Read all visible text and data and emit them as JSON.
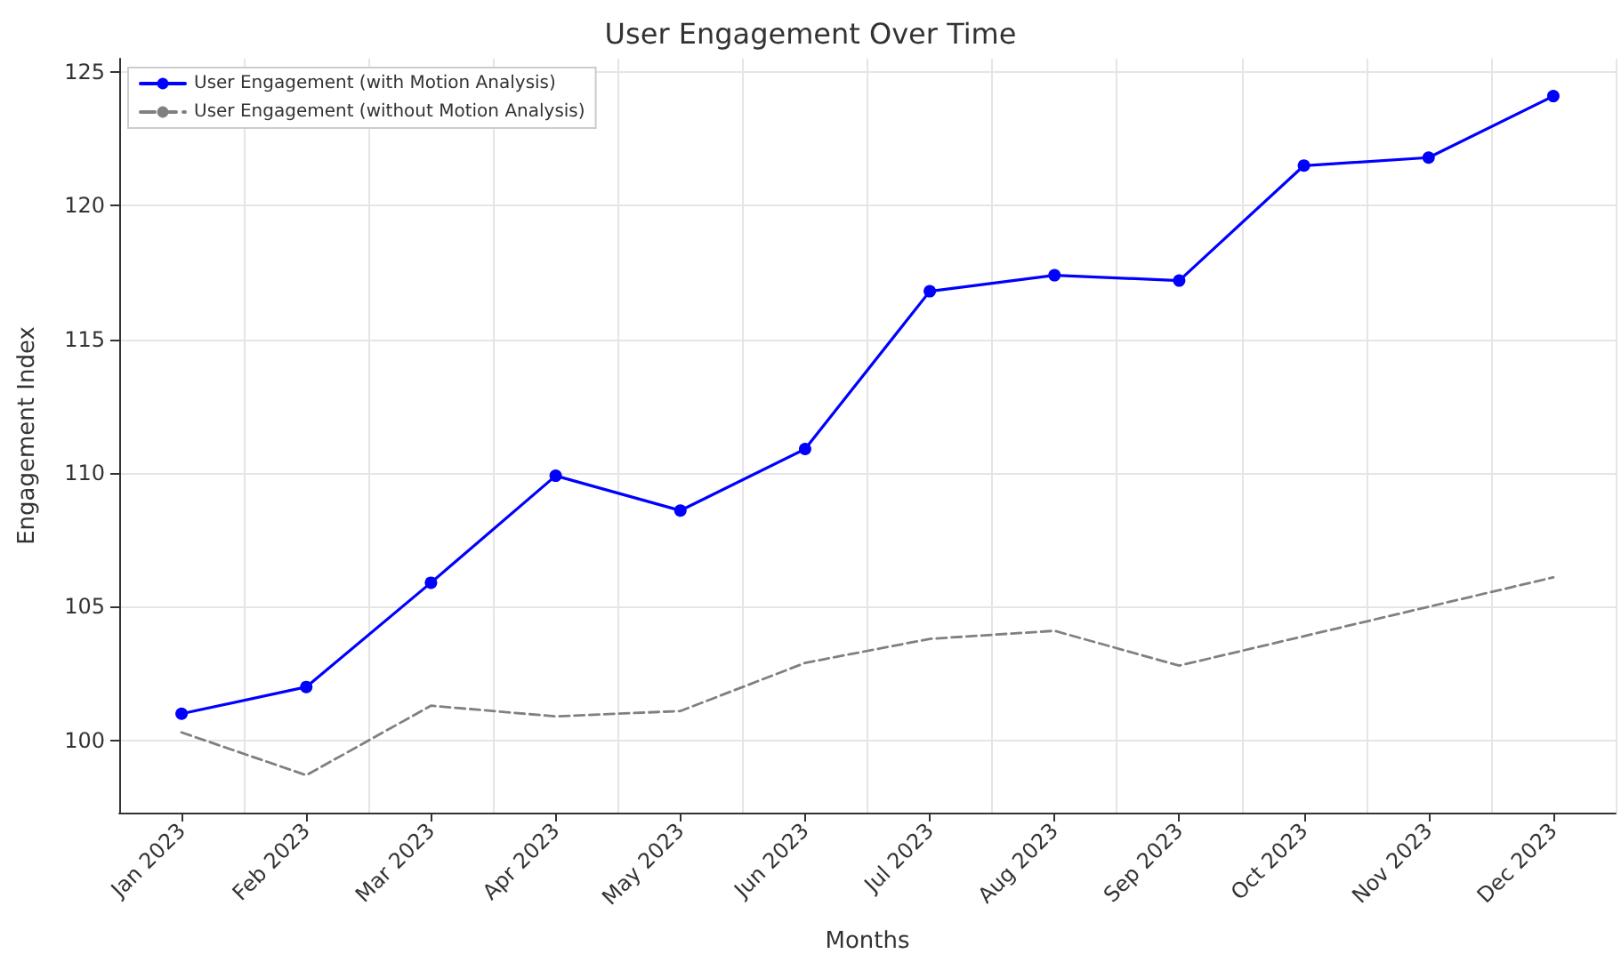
{
  "chart_data": {
    "type": "line",
    "title": "User Engagement Over Time",
    "xlabel": "Months",
    "ylabel": "Engagement Index",
    "categories": [
      "Jan 2023",
      "Feb 2023",
      "Mar 2023",
      "Apr 2023",
      "May 2023",
      "Jun 2023",
      "Jul 2023",
      "Aug 2023",
      "Sep 2023",
      "Oct 2023",
      "Nov 2023",
      "Dec 2023"
    ],
    "series": [
      {
        "name": "User Engagement (with Motion Analysis)",
        "color": "#0000ff",
        "marker": "circle",
        "line_style": "solid",
        "values": [
          101.0,
          102.0,
          105.9,
          109.9,
          108.6,
          110.9,
          116.8,
          117.4,
          117.2,
          121.5,
          121.8,
          124.1
        ]
      },
      {
        "name": "User Engagement (without Motion Analysis)",
        "color": "#808080",
        "marker": "none",
        "line_style": "dashed",
        "values": [
          100.3,
          98.7,
          101.3,
          100.9,
          101.1,
          102.9,
          103.8,
          104.1,
          102.8,
          103.9,
          105.0,
          106.1
        ]
      }
    ],
    "ylim": [
      97.3,
      125.5
    ],
    "yticks": [
      100,
      105,
      110,
      115,
      120,
      125
    ],
    "grid": true,
    "legend": "top left"
  }
}
